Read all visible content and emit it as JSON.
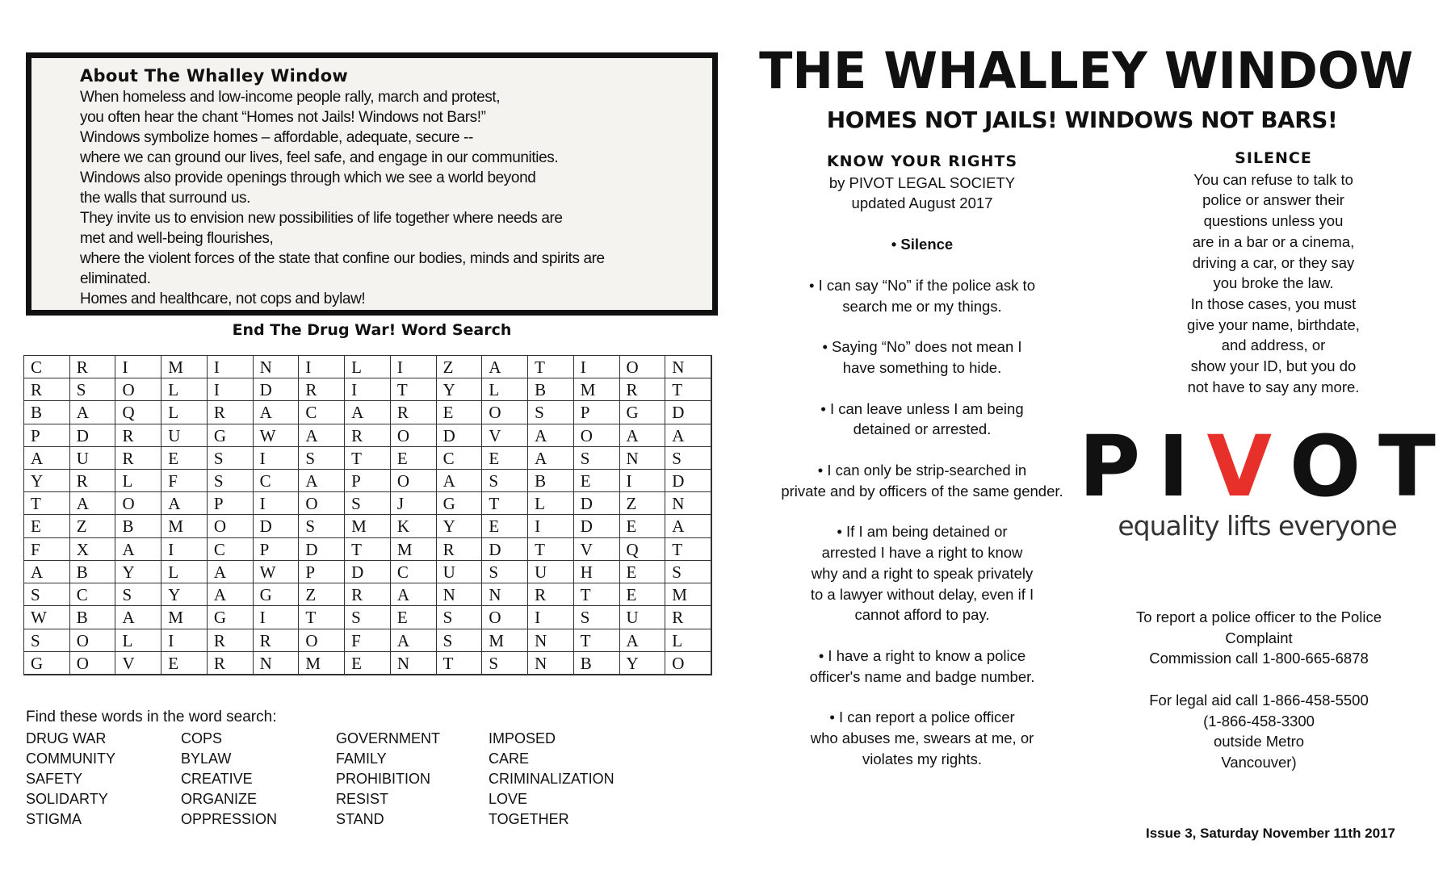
{
  "about": {
    "heading": "About The Whalley Window",
    "lines": [
      "When homeless and low-income people rally, march and protest,",
      "you often hear the chant “Homes not Jails! Windows not Bars!”",
      "Windows symbolize homes – affordable, adequate, secure --",
      "where we can ground our lives, feel safe, and engage in our communities.",
      "Windows also provide openings through which we see a world beyond",
      "the walls that surround us.",
      "They invite us to envision new possibilities of life together where needs are",
      " met and well-being flourishes,",
      "where the violent forces of the state that confine our bodies, minds and spirits are",
      " eliminated.",
      "Homes and healthcare, not cops and bylaw!"
    ]
  },
  "word_search": {
    "title": "End The Drug War! Word Search",
    "grid": [
      "CRIMINILIZATION",
      "RSOLIDRITYLBMRT",
      "BAQLRACAREOSPGD",
      "PDRUGWARODVAOAA",
      "AURESISTECEASNS",
      "YRLFSCAPOASBEID",
      "TAOAPIOSJGTLDZN",
      "EZBMODSMKYEIDEA",
      "FXAICPDTMRDTVQT",
      "ABYLAWPDCUSUHES",
      "SCSYAGZRANNRTEM",
      "WBAMGITSESOISUR",
      "SOLIRROFASMNTAL",
      "GOVERNMENTSNBYO"
    ],
    "instructions": "Find these words in the word search:",
    "word_columns": [
      [
        "DRUG WAR",
        "COMMUNITY",
        "SAFETY",
        "SOLIDARTY",
        "STIGMA"
      ],
      [
        "COPS",
        "BYLAW",
        "CREATIVE",
        "ORGANIZE",
        "OPPRESSION"
      ],
      [
        "GOVERNMENT",
        "FAMILY",
        "PROHIBITION",
        "RESIST",
        "STAND"
      ],
      [
        "IMPOSED",
        "CARE",
        "CRIMINALIZATION",
        "LOVE",
        "TOGETHER"
      ]
    ]
  },
  "masthead": {
    "title": "THE WHALLEY WINDOW",
    "subtitle": "HOMES NOT JAILS! WINDOWS NOT BARS!"
  },
  "rights": {
    "heading": "KNOW YOUR RIGHTS",
    "byline": "by PIVOT LEGAL SOCIETY",
    "updated": "updated August 2017",
    "silence_bullet": "• Silence",
    "items": [
      [
        "• I can say “No” if the police ask to",
        "search me or my things."
      ],
      [
        "• Saying “No” does not mean I",
        "have something to hide."
      ],
      [
        "• I can leave unless I am being",
        "detained or arrested."
      ],
      [
        "• I can only be strip-searched in",
        "private and by officers of the same gender."
      ],
      [
        "• If I am being detained or",
        "arrested I have a right to know",
        "why and a right to speak privately",
        "to a lawyer without delay, even if I",
        "cannot afford to pay."
      ],
      [
        "• I have a right to know a police",
        "officer's name and badge number."
      ],
      [
        "• I can report a police officer",
        "who abuses me, swears at me, or",
        "violates my rights."
      ]
    ]
  },
  "silence": {
    "heading": "SILENCE",
    "lines": [
      "You can refuse to talk to",
      "police or answer their",
      "questions unless you",
      "are in a bar or a cinema,",
      "driving a car, or they say",
      "you broke the law.",
      "In those cases, you must",
      "give your name, birthdate,",
      "and address, or",
      "show your ID, but you do",
      "not have to say any more."
    ]
  },
  "logo": {
    "letters": [
      "P",
      "I",
      "V",
      "O",
      "T"
    ],
    "tagline": "equality lifts everyone",
    "accent_color": "#e8302a"
  },
  "report": {
    "lines": [
      "To report a police officer to the Police",
      "Complaint",
      "Commission call 1-800-665-6878",
      "",
      "For legal aid call 1-866-458-5500",
      "(1-866-458-3300",
      "outside Metro",
      "Vancouver)"
    ]
  },
  "issue": "Issue 3, Saturday November 11th 2017"
}
